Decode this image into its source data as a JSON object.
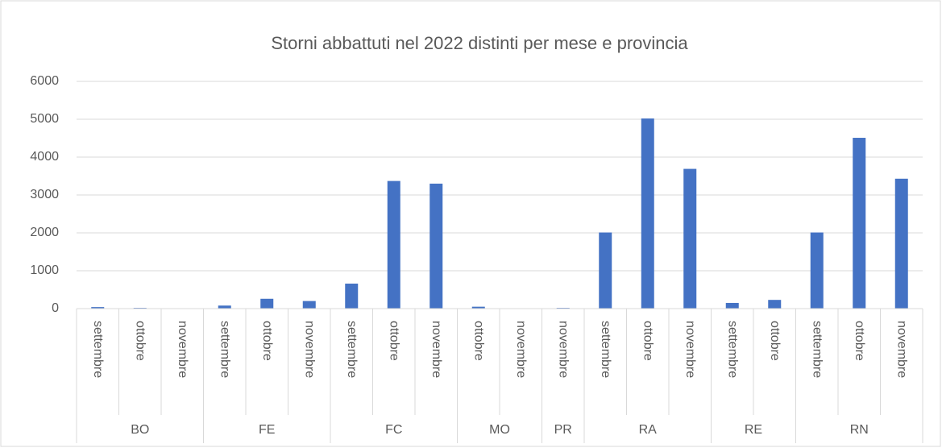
{
  "chart_data": {
    "type": "bar",
    "title": "Storni abbattuti nel 2022 distinti per mese e provincia",
    "color": "#4472c4",
    "grid": true,
    "ylim": [
      0,
      6000
    ],
    "yticks": [
      0,
      1000,
      2000,
      3000,
      4000,
      5000,
      6000
    ],
    "groups": [
      {
        "name": "BO",
        "categories": [
          "settembre",
          "ottobre",
          "novembre"
        ],
        "values": [
          40,
          20,
          5
        ]
      },
      {
        "name": "FE",
        "categories": [
          "settembre",
          "ottobre",
          "novembre"
        ],
        "values": [
          80,
          260,
          200
        ]
      },
      {
        "name": "FC",
        "categories": [
          "settembre",
          "ottobre",
          "novembre"
        ],
        "values": [
          660,
          3370,
          3300
        ]
      },
      {
        "name": "MO",
        "categories": [
          "ottobre",
          "novembre"
        ],
        "values": [
          50,
          0
        ]
      },
      {
        "name": "PR",
        "categories": [
          "novembre"
        ],
        "values": [
          20
        ]
      },
      {
        "name": "RA",
        "categories": [
          "settembre",
          "ottobre",
          "novembre"
        ],
        "values": [
          2010,
          5020,
          3690
        ]
      },
      {
        "name": "RE",
        "categories": [
          "settembre",
          "ottobre"
        ],
        "values": [
          150,
          230
        ]
      },
      {
        "name": "RN",
        "categories": [
          "settembre",
          "ottobre",
          "novembre"
        ],
        "values": [
          2010,
          4510,
          3430
        ]
      }
    ]
  }
}
